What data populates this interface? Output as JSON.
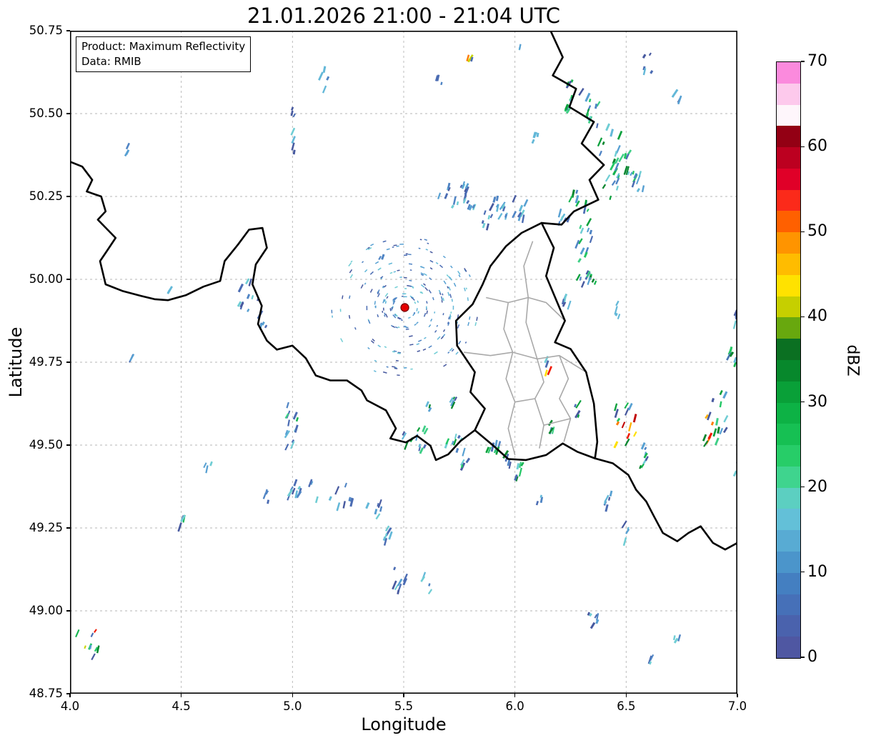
{
  "annotation": {
    "line1": "Product: Maximum Reflectivity",
    "line2": "Data: RMIB"
  },
  "map": {
    "border_color": "#000000",
    "inner_color": "#a9a9a9",
    "borders": [
      {
        "name": "belgium-france",
        "closed": false,
        "points": [
          [
            4.0,
            50.355
          ],
          [
            4.055,
            50.34
          ],
          [
            4.1,
            50.3
          ],
          [
            4.075,
            50.265
          ],
          [
            4.14,
            50.25
          ],
          [
            4.16,
            50.205
          ],
          [
            4.125,
            50.18
          ],
          [
            4.205,
            50.125
          ],
          [
            4.165,
            50.085
          ],
          [
            4.135,
            50.055
          ],
          [
            4.16,
            49.985
          ],
          [
            4.235,
            49.965
          ],
          [
            4.32,
            49.95
          ],
          [
            4.38,
            49.94
          ],
          [
            4.44,
            49.937
          ],
          [
            4.52,
            49.952
          ],
          [
            4.6,
            49.978
          ],
          [
            4.675,
            49.995
          ],
          [
            4.695,
            50.055
          ],
          [
            4.755,
            50.105
          ],
          [
            4.805,
            50.15
          ],
          [
            4.865,
            50.155
          ],
          [
            4.885,
            50.095
          ],
          [
            4.835,
            50.045
          ],
          [
            4.82,
            49.985
          ],
          [
            4.862,
            49.92
          ],
          [
            4.845,
            49.865
          ],
          [
            4.885,
            49.815
          ],
          [
            4.93,
            49.788
          ],
          [
            5.0,
            49.8
          ],
          [
            5.06,
            49.762
          ],
          [
            5.105,
            49.71
          ],
          [
            5.17,
            49.695
          ],
          [
            5.245,
            49.695
          ],
          [
            5.31,
            49.665
          ],
          [
            5.335,
            49.635
          ],
          [
            5.42,
            49.605
          ],
          [
            5.465,
            49.55
          ],
          [
            5.44,
            49.52
          ],
          [
            5.51,
            49.508
          ],
          [
            5.56,
            49.528
          ],
          [
            5.62,
            49.498
          ],
          [
            5.645,
            49.455
          ],
          [
            5.7,
            49.472
          ],
          [
            5.755,
            49.512
          ],
          [
            5.82,
            49.545
          ]
        ]
      },
      {
        "name": "luxembourg",
        "closed": true,
        "points": [
          [
            6.12,
            50.17
          ],
          [
            6.175,
            50.095
          ],
          [
            6.14,
            50.01
          ],
          [
            6.225,
            49.875
          ],
          [
            6.18,
            49.81
          ],
          [
            6.25,
            49.79
          ],
          [
            6.32,
            49.72
          ],
          [
            6.355,
            49.625
          ],
          [
            6.37,
            49.51
          ],
          [
            6.36,
            49.46
          ],
          [
            6.28,
            49.48
          ],
          [
            6.215,
            49.505
          ],
          [
            6.14,
            49.47
          ],
          [
            6.05,
            49.455
          ],
          [
            5.97,
            49.458
          ],
          [
            5.9,
            49.5
          ],
          [
            5.82,
            49.545
          ],
          [
            5.865,
            49.61
          ],
          [
            5.8,
            49.66
          ],
          [
            5.82,
            49.72
          ],
          [
            5.74,
            49.8
          ],
          [
            5.735,
            49.875
          ],
          [
            5.81,
            49.925
          ],
          [
            5.855,
            49.985
          ],
          [
            5.89,
            50.04
          ],
          [
            5.96,
            50.1
          ],
          [
            6.03,
            50.14
          ]
        ]
      },
      {
        "name": "belgium-germany",
        "closed": false,
        "points": [
          [
            6.16,
            50.75
          ],
          [
            6.215,
            50.67
          ],
          [
            6.17,
            50.615
          ],
          [
            6.275,
            50.575
          ],
          [
            6.245,
            50.52
          ],
          [
            6.355,
            50.475
          ],
          [
            6.3,
            50.41
          ],
          [
            6.4,
            50.345
          ],
          [
            6.335,
            50.3
          ],
          [
            6.375,
            50.24
          ],
          [
            6.265,
            50.205
          ],
          [
            6.21,
            50.165
          ],
          [
            6.12,
            50.17
          ]
        ]
      },
      {
        "name": "france-germany",
        "closed": false,
        "points": [
          [
            6.36,
            49.46
          ],
          [
            6.44,
            49.445
          ],
          [
            6.51,
            49.41
          ],
          [
            6.545,
            49.365
          ],
          [
            6.59,
            49.33
          ],
          [
            6.625,
            49.285
          ],
          [
            6.665,
            49.235
          ],
          [
            6.73,
            49.21
          ],
          [
            6.78,
            49.235
          ],
          [
            6.835,
            49.255
          ],
          [
            6.89,
            49.205
          ],
          [
            6.945,
            49.185
          ],
          [
            7.0,
            49.205
          ]
        ]
      }
    ],
    "inner_borders": [
      {
        "points": [
          [
            5.77,
            49.78
          ],
          [
            5.89,
            49.77
          ],
          [
            5.99,
            49.78
          ],
          [
            6.1,
            49.76
          ],
          [
            6.2,
            49.77
          ],
          [
            6.32,
            49.72
          ]
        ]
      },
      {
        "points": [
          [
            5.87,
            49.945
          ],
          [
            5.97,
            49.93
          ],
          [
            6.06,
            49.945
          ],
          [
            6.14,
            49.93
          ],
          [
            6.225,
            49.875
          ]
        ]
      },
      {
        "points": [
          [
            6.08,
            50.115
          ],
          [
            6.04,
            50.04
          ],
          [
            6.06,
            49.945
          ]
        ]
      },
      {
        "points": [
          [
            6.06,
            49.945
          ],
          [
            6.05,
            49.87
          ],
          [
            6.1,
            49.76
          ]
        ]
      },
      {
        "points": [
          [
            5.97,
            49.93
          ],
          [
            5.95,
            49.85
          ],
          [
            5.99,
            49.78
          ]
        ]
      },
      {
        "points": [
          [
            5.99,
            49.78
          ],
          [
            5.96,
            49.7
          ],
          [
            6.0,
            49.63
          ],
          [
            5.97,
            49.55
          ],
          [
            6.0,
            49.47
          ]
        ]
      },
      {
        "points": [
          [
            6.1,
            49.76
          ],
          [
            6.13,
            49.69
          ],
          [
            6.09,
            49.64
          ],
          [
            6.13,
            49.56
          ],
          [
            6.11,
            49.49
          ]
        ]
      },
      {
        "points": [
          [
            6.2,
            49.77
          ],
          [
            6.24,
            49.7
          ],
          [
            6.2,
            49.64
          ],
          [
            6.25,
            49.58
          ],
          [
            6.22,
            49.51
          ]
        ]
      },
      {
        "points": [
          [
            6.0,
            49.63
          ],
          [
            6.09,
            49.64
          ]
        ]
      },
      {
        "points": [
          [
            6.13,
            49.56
          ],
          [
            6.25,
            49.58
          ]
        ]
      }
    ]
  },
  "chart_data": {
    "type": "heatmap",
    "title": "21.01.2026 21:00 - 21:04 UTC",
    "xlabel": "Longitude",
    "ylabel": "Latitude",
    "xlim": [
      4.0,
      7.0
    ],
    "ylim": [
      48.75,
      50.75
    ],
    "x_ticks": [
      4.0,
      4.5,
      5.0,
      5.5,
      6.0,
      6.5,
      7.0
    ],
    "x_tick_labels": [
      "4.0",
      "4.5",
      "5.0",
      "5.5",
      "6.0",
      "6.5",
      "7.0"
    ],
    "y_ticks": [
      48.75,
      49.0,
      49.25,
      49.5,
      49.75,
      50.0,
      50.25,
      50.5,
      50.75
    ],
    "y_tick_labels": [
      "48.75",
      "49.00",
      "49.25",
      "49.50",
      "49.75",
      "50.00",
      "50.25",
      "50.50",
      "50.75"
    ],
    "grid": "dashed",
    "grid_color": "#b5b5b5",
    "colorbar": {
      "label": "dBZ",
      "min": 0,
      "max": 70,
      "ticks": [
        0,
        10,
        20,
        30,
        40,
        50,
        60,
        70
      ],
      "colors": [
        "#4f57a2",
        "#4a62ad",
        "#4670b8",
        "#447fc1",
        "#4b95cb",
        "#58abd3",
        "#63c0d8",
        "#5ccfc1",
        "#3fd48e",
        "#27cd68",
        "#16c053",
        "#0db245",
        "#09a038",
        "#07882c",
        "#0b7022",
        "#68a80e",
        "#c6cf00",
        "#ffe200",
        "#ffbc00",
        "#ff9400",
        "#ff6000",
        "#fb2a1a",
        "#e00028",
        "#bc0020",
        "#930014",
        "#fef6fb",
        "#fdc9ec",
        "#fb8add"
      ]
    },
    "radar_site": {
      "lon": 5.505,
      "lat": 49.915,
      "color": "#e50000",
      "edge": "#7a0000"
    },
    "clutter": {
      "count": 330
    },
    "palettes": {
      "blue": [
        "#47599f",
        "#4b6cb3",
        "#4f84c4",
        "#57a0d2",
        "#63b8d8",
        "#6fcdd4"
      ],
      "green": [
        "#3ecf86",
        "#23c765",
        "#14b44e",
        "#0aa03c",
        "#07862e"
      ],
      "warm": [
        "#c8d400",
        "#ffe000",
        "#ffb000",
        "#ff7c00",
        "#f01800",
        "#c00000"
      ]
    },
    "echo_clusters": [
      [
        5.14,
        50.62,
        0.02,
        0.05,
        4,
        "low"
      ],
      [
        5.66,
        50.6,
        0.015,
        0.03,
        3,
        "low"
      ],
      [
        5.8,
        50.665,
        0.012,
        0.02,
        3,
        "high"
      ],
      [
        6.02,
        50.7,
        0.01,
        0.02,
        2,
        "low"
      ],
      [
        6.6,
        50.64,
        0.02,
        0.04,
        5,
        "low"
      ],
      [
        6.73,
        50.56,
        0.012,
        0.02,
        3,
        "low"
      ],
      [
        6.28,
        50.555,
        0.05,
        0.05,
        12,
        "mid"
      ],
      [
        6.35,
        50.5,
        0.04,
        0.04,
        9,
        "mid"
      ],
      [
        6.1,
        50.44,
        0.02,
        0.04,
        4,
        "low"
      ],
      [
        6.43,
        50.4,
        0.05,
        0.07,
        10,
        "mid"
      ],
      [
        6.5,
        50.335,
        0.05,
        0.06,
        12,
        "mid"
      ],
      [
        6.44,
        50.295,
        0.04,
        0.05,
        9,
        "mid"
      ],
      [
        6.55,
        50.29,
        0.03,
        0.03,
        6,
        "low"
      ],
      [
        4.26,
        50.41,
        0.01,
        0.035,
        3,
        "low"
      ],
      [
        5.0,
        50.47,
        0.012,
        0.045,
        4,
        "low"
      ],
      [
        5.01,
        50.4,
        0.01,
        0.03,
        3,
        "low"
      ],
      [
        6.29,
        50.25,
        0.04,
        0.05,
        9,
        "mid"
      ],
      [
        6.22,
        50.2,
        0.03,
        0.04,
        6,
        "low"
      ],
      [
        5.72,
        50.25,
        0.1,
        0.035,
        22,
        "low"
      ],
      [
        5.92,
        50.225,
        0.08,
        0.04,
        16,
        "low"
      ],
      [
        6.05,
        50.205,
        0.03,
        0.03,
        6,
        "low"
      ],
      [
        6.31,
        50.12,
        0.035,
        0.055,
        10,
        "mid"
      ],
      [
        6.3,
        50.03,
        0.03,
        0.05,
        8,
        "mid"
      ],
      [
        6.23,
        49.95,
        0.02,
        0.03,
        5,
        "low"
      ],
      [
        6.35,
        49.98,
        0.02,
        0.03,
        5,
        "mid"
      ],
      [
        5.87,
        50.17,
        0.015,
        0.02,
        3,
        "low"
      ],
      [
        6.46,
        49.905,
        0.013,
        0.03,
        4,
        "low"
      ],
      [
        4.8,
        49.95,
        0.05,
        0.05,
        10,
        "low"
      ],
      [
        4.86,
        49.875,
        0.03,
        0.03,
        5,
        "low"
      ],
      [
        4.45,
        49.96,
        0.008,
        0.02,
        2,
        "low"
      ],
      [
        4.28,
        49.775,
        0.008,
        0.02,
        2,
        "low"
      ],
      [
        5.4,
        50.05,
        0.008,
        0.02,
        2,
        "low"
      ],
      [
        7.0,
        49.9,
        0.015,
        0.05,
        6,
        "low"
      ],
      [
        6.98,
        49.755,
        0.025,
        0.05,
        7,
        "mid"
      ],
      [
        6.92,
        49.6,
        0.035,
        0.07,
        10,
        "mid"
      ],
      [
        6.88,
        49.54,
        0.03,
        0.05,
        8,
        "high"
      ],
      [
        6.5,
        49.56,
        0.05,
        0.06,
        14,
        "high"
      ],
      [
        6.56,
        49.47,
        0.035,
        0.04,
        8,
        "mid"
      ],
      [
        6.15,
        49.735,
        0.01,
        0.025,
        4,
        "high"
      ],
      [
        5.72,
        49.625,
        0.015,
        0.025,
        5,
        "high"
      ],
      [
        5.62,
        49.615,
        0.015,
        0.02,
        3,
        "mid"
      ],
      [
        5.0,
        49.585,
        0.035,
        0.04,
        8,
        "mid"
      ],
      [
        4.98,
        49.52,
        0.025,
        0.03,
        5,
        "low"
      ],
      [
        5.55,
        49.515,
        0.06,
        0.035,
        12,
        "mid"
      ],
      [
        5.73,
        49.5,
        0.045,
        0.03,
        9,
        "mid"
      ],
      [
        5.92,
        49.475,
        0.045,
        0.035,
        10,
        "mid"
      ],
      [
        6.0,
        49.42,
        0.035,
        0.03,
        8,
        "mid"
      ],
      [
        6.17,
        49.56,
        0.015,
        0.025,
        4,
        "mid"
      ],
      [
        6.28,
        49.61,
        0.015,
        0.025,
        4,
        "mid"
      ],
      [
        6.42,
        49.315,
        0.015,
        0.045,
        6,
        "low"
      ],
      [
        6.5,
        49.235,
        0.015,
        0.03,
        4,
        "low"
      ],
      [
        4.5,
        49.27,
        0.015,
        0.02,
        4,
        "mid"
      ],
      [
        5.05,
        49.38,
        0.07,
        0.05,
        12,
        "low"
      ],
      [
        5.22,
        49.345,
        0.05,
        0.035,
        8,
        "low"
      ],
      [
        5.37,
        49.3,
        0.035,
        0.03,
        6,
        "low"
      ],
      [
        5.43,
        49.22,
        0.025,
        0.035,
        6,
        "low"
      ],
      [
        5.48,
        49.1,
        0.035,
        0.045,
        8,
        "low"
      ],
      [
        5.6,
        49.085,
        0.02,
        0.03,
        4,
        "low"
      ],
      [
        6.35,
        48.985,
        0.025,
        0.035,
        6,
        "low"
      ],
      [
        6.73,
        48.9,
        0.015,
        0.02,
        3,
        "low"
      ],
      [
        6.62,
        48.855,
        0.015,
        0.015,
        3,
        "low"
      ],
      [
        4.07,
        48.915,
        0.045,
        0.025,
        6,
        "high"
      ],
      [
        4.13,
        48.88,
        0.03,
        0.02,
        4,
        "mid"
      ],
      [
        7.0,
        49.45,
        0.015,
        0.04,
        5,
        "low"
      ],
      [
        4.62,
        49.43,
        0.015,
        0.015,
        3,
        "low"
      ],
      [
        4.9,
        49.345,
        0.025,
        0.02,
        4,
        "low"
      ],
      [
        5.77,
        49.445,
        0.02,
        0.02,
        4,
        "mid"
      ],
      [
        6.1,
        49.345,
        0.02,
        0.02,
        3,
        "low"
      ]
    ]
  }
}
